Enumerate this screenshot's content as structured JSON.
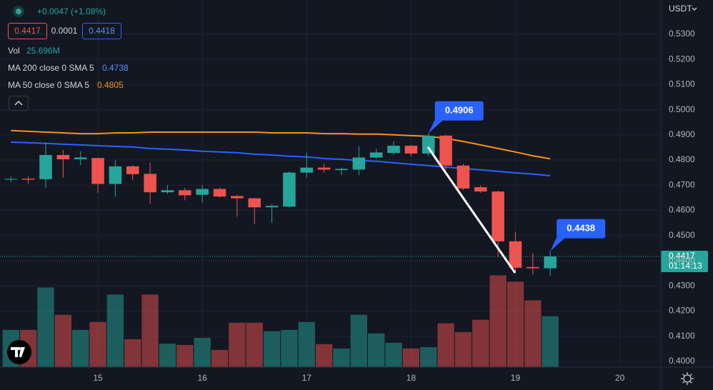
{
  "header": {
    "change": "+0.0047 (+1.08%)",
    "bid": "0.4417",
    "spread": "0.0001",
    "ask": "0.4418"
  },
  "currency": "USDT",
  "chart_data": {
    "type": "candlestick",
    "x": [
      14.1667,
      14.3333,
      14.5,
      14.6667,
      14.8333,
      15,
      15.1667,
      15.3333,
      15.5,
      15.6667,
      15.8333,
      16,
      16.1667,
      16.3333,
      16.5,
      16.6667,
      16.8333,
      17,
      17.1667,
      17.3333,
      17.5,
      17.6667,
      17.8333,
      18,
      18.1667,
      18.3333,
      18.5,
      18.6667,
      18.8333,
      19,
      19.1667,
      19.3333
    ],
    "open": [
      0.4722,
      0.4726,
      0.4724,
      0.482,
      0.4803,
      0.4808,
      0.4705,
      0.4775,
      0.4745,
      0.4672,
      0.468,
      0.4662,
      0.4685,
      0.4657,
      0.4648,
      0.4612,
      0.4615,
      0.475,
      0.477,
      0.476,
      0.4762,
      0.481,
      0.4828,
      0.4857,
      0.4826,
      0.4897,
      0.4778,
      0.4692,
      0.4675,
      0.4477,
      0.4375,
      0.437
    ],
    "high": [
      0.4735,
      0.4735,
      0.487,
      0.484,
      0.4835,
      0.481,
      0.48,
      0.478,
      0.479,
      0.47,
      0.469,
      0.47,
      0.469,
      0.466,
      0.465,
      0.4625,
      0.4755,
      0.483,
      0.4785,
      0.477,
      0.4855,
      0.4845,
      0.4875,
      0.486,
      0.4906,
      0.49,
      0.4785,
      0.47,
      0.4678,
      0.4515,
      0.443,
      0.4438
    ],
    "low": [
      0.4712,
      0.4705,
      0.469,
      0.473,
      0.478,
      0.467,
      0.4655,
      0.472,
      0.4625,
      0.4665,
      0.464,
      0.463,
      0.465,
      0.4575,
      0.4545,
      0.455,
      0.4612,
      0.473,
      0.475,
      0.474,
      0.474,
      0.4805,
      0.482,
      0.4815,
      0.4815,
      0.476,
      0.468,
      0.467,
      0.4415,
      0.4355,
      0.4345,
      0.434
    ],
    "close": [
      0.4725,
      0.4722,
      0.482,
      0.4803,
      0.481,
      0.4705,
      0.4775,
      0.4744,
      0.4672,
      0.468,
      0.466,
      0.4685,
      0.4655,
      0.4648,
      0.4612,
      0.4618,
      0.475,
      0.477,
      0.4762,
      0.4765,
      0.481,
      0.483,
      0.4857,
      0.4826,
      0.4896,
      0.4778,
      0.4687,
      0.4675,
      0.4477,
      0.4372,
      0.437,
      0.4417
    ],
    "up_color": "#26a69a",
    "down_color": "#ef5350",
    "volume": {
      "name": "Vol",
      "last_label": "25.696M",
      "values": [
        18.8,
        18.8,
        40.2,
        26.4,
        18.8,
        22.8,
        36.6,
        14.1,
        36.6,
        11.9,
        11.2,
        14.8,
        8.7,
        22.4,
        22.4,
        18.1,
        18.8,
        22.8,
        11.6,
        9.4,
        26.4,
        17.0,
        12.3,
        9.4,
        10.1,
        22.1,
        17.7,
        23.9,
        46.3,
        43.1,
        33.7,
        25.696
      ]
    },
    "series": [
      {
        "name": "MA 200 close 0 SMA 5",
        "color": "#2962ff",
        "values": [
          0.4871,
          0.4869,
          0.4866,
          0.4863,
          0.486,
          0.4857,
          0.4854,
          0.4852,
          0.4846,
          0.4843,
          0.484,
          0.4835,
          0.4832,
          0.4829,
          0.4823,
          0.482,
          0.4815,
          0.4812,
          0.4806,
          0.4803,
          0.4798,
          0.4795,
          0.4789,
          0.4783,
          0.4778,
          0.4772,
          0.4766,
          0.4761,
          0.4755,
          0.4749,
          0.4744,
          0.4738
        ]
      },
      {
        "name": "MA 50 close 0 SMA 5",
        "color": "#f7931a",
        "values": [
          0.4917,
          0.4914,
          0.4911,
          0.4908,
          0.4905,
          0.4905,
          0.4908,
          0.4908,
          0.4911,
          0.4911,
          0.4911,
          0.4911,
          0.4911,
          0.4911,
          0.4911,
          0.4908,
          0.4908,
          0.4908,
          0.4905,
          0.4905,
          0.4903,
          0.4903,
          0.49,
          0.4897,
          0.4894,
          0.4886,
          0.4874,
          0.486,
          0.4846,
          0.4832,
          0.4817,
          0.4805
        ]
      }
    ],
    "countdown": "01:14:13",
    "callouts": [
      {
        "x": 18.1667,
        "value": 0.4906
      },
      {
        "x": 19.3333,
        "value": 0.4438
      }
    ],
    "xlim": [
      14.062,
      20.393
    ],
    "xticks": [
      15,
      16,
      17,
      18,
      19,
      20
    ],
    "ylim": [
      0.3977,
      0.5436
    ],
    "yticks": [
      {
        "value": 0.53,
        "label": "0.5300"
      },
      {
        "value": 0.52,
        "label": "0.5200"
      },
      {
        "value": 0.51,
        "label": "0.5100"
      },
      {
        "value": 0.5,
        "label": "0.5000"
      },
      {
        "value": 0.49,
        "label": "0.4900"
      },
      {
        "value": 0.48,
        "label": "0.4800"
      },
      {
        "value": 0.47,
        "label": "0.4700"
      },
      {
        "value": 0.46,
        "label": "0.4600"
      },
      {
        "value": 0.45,
        "label": "0.4500"
      },
      {
        "value": 0.44,
        "label": "0.4400"
      },
      {
        "value": 0.43,
        "label": "0.4300"
      },
      {
        "value": 0.42,
        "label": "0.4200"
      },
      {
        "value": 0.41,
        "label": "0.4100"
      },
      {
        "value": 0.4,
        "label": "0.4000"
      }
    ],
    "grid": true
  }
}
